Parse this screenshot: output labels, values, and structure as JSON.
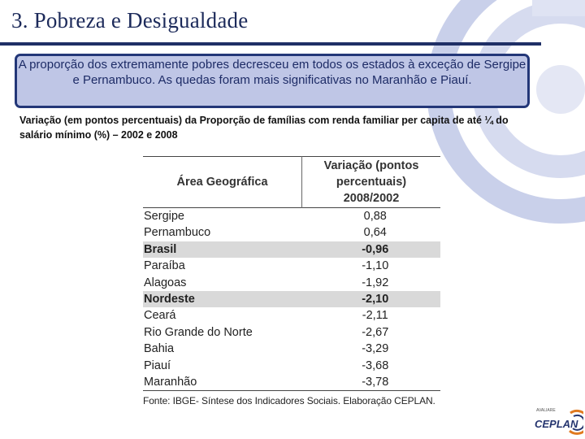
{
  "slide": {
    "title": "3. Pobreza e Desigualdade",
    "callout": "A proporção dos extremamente pobres decresceu em todos os estados à exceção de Sergipe e Pernambuco. As quedas foram mais significativas no Maranhão e Piauí.",
    "caption": "Variação (em pontos percentuais) da Proporção de famílias com renda familiar per capita de até ¼ do salário mínimo (%) – 2002 e 2008"
  },
  "table": {
    "header_area": "Área Geográfica",
    "header_var_line1": "Variação (pontos",
    "header_var_line2": "percentuais)",
    "header_var_line3": "2008/2002",
    "rows": [
      {
        "area": "Sergipe",
        "value": "0,88"
      },
      {
        "area": "Pernambuco",
        "value": "0,64"
      },
      {
        "area": "Brasil",
        "value": "-0,96"
      },
      {
        "area": "Paraíba",
        "value": "-1,10"
      },
      {
        "area": "Alagoas",
        "value": "-1,92"
      },
      {
        "area": "Nordeste",
        "value": "-2,10"
      },
      {
        "area": "Ceará",
        "value": "-2,11"
      },
      {
        "area": "Rio Grande do Norte",
        "value": "-2,67"
      },
      {
        "area": "Bahia",
        "value": "-3,29"
      },
      {
        "area": "Piauí",
        "value": "-3,68"
      },
      {
        "area": "Maranhão",
        "value": "-3,78"
      }
    ],
    "source": "Fonte: IBGE- Síntese dos Indicadores Sociais. Elaboração CEPLAN."
  },
  "logo": {
    "small_text": "AVALIARE",
    "text": "CEPLAN"
  },
  "colors": {
    "title": "#1c2a5a",
    "callout_fill": "#bfc6e6",
    "callout_border": "#233778",
    "highlight_row": "#d9d9d9",
    "decoration": "#c9d0ea"
  }
}
